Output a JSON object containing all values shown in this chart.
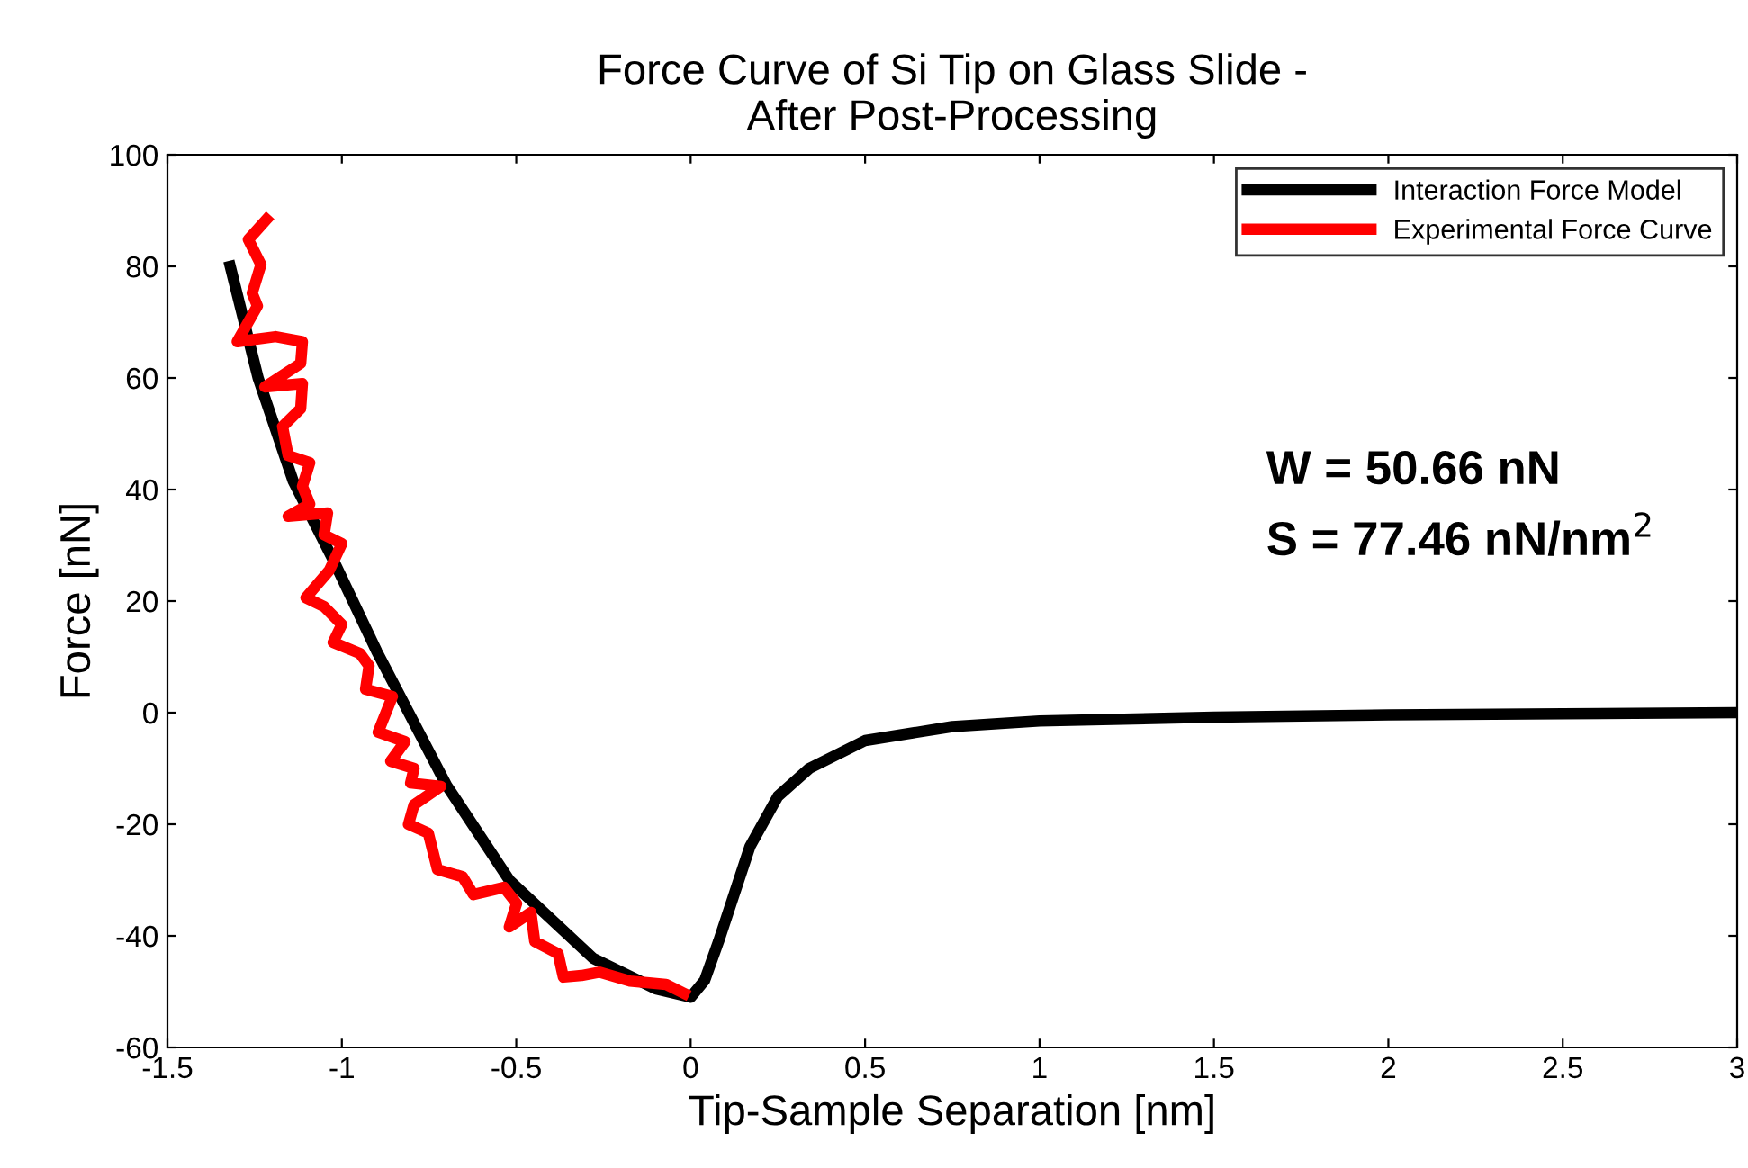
{
  "chart_data": {
    "type": "line",
    "title": "Force Curve of Si Tip on Glass Slide -\nAfter Post-Processing",
    "xlabel": "Tip-Sample Separation [nm]",
    "ylabel": "Force [nN]",
    "annotations": [
      "W = 50.66 nN",
      "S = 77.46 nN/nm$^{2}$"
    ],
    "xlim": [
      -1.5,
      3
    ],
    "ylim": [
      -60,
      100
    ],
    "xticks": [
      -1.5,
      -1,
      -0.5,
      0,
      0.5,
      1,
      1.5,
      2,
      2.5,
      3
    ],
    "yticks": [
      -60,
      -40,
      -20,
      0,
      20,
      40,
      60,
      80,
      100
    ],
    "grid": false,
    "legend": "top right",
    "marker": "none",
    "line_style": "solid",
    "series": [
      {
        "name": "Interaction Force Model",
        "color": "#000000",
        "x": [
          -1.32,
          -1.24,
          -1.14,
          -1.02,
          -0.9,
          -0.7,
          -0.52,
          -0.28,
          -0.1,
          0,
          0.04,
          0.08,
          0.17,
          0.25,
          0.34,
          0.5,
          0.75,
          1,
          1.5,
          2,
          2.5,
          3
        ],
        "values": [
          80,
          60,
          41.6,
          26.8,
          11,
          -13,
          -30,
          -44,
          -49.5,
          -51,
          -48,
          -41,
          -24,
          -15,
          -10,
          -5,
          -2.5,
          -1.5,
          -0.8,
          -0.4,
          -0.2,
          0
        ]
      },
      {
        "name": "Experimental Force Curve",
        "color": "#ff0000",
        "x": [
          -1.216,
          -1.268,
          -1.232,
          -1.257,
          -1.242,
          -1.3,
          -1.19,
          -1.113,
          -1.118,
          -1.221,
          -1.113,
          -1.118,
          -1.17,
          -1.154,
          -1.092,
          -1.113,
          -1.092,
          -1.154,
          -1.041,
          -1.051,
          -1.0,
          -1.036,
          -1.103,
          -1.051,
          -1.0,
          -1.025,
          -0.948,
          -0.922,
          -0.932,
          -0.855,
          -0.896,
          -0.819,
          -0.86,
          -0.793,
          -0.803,
          -0.716,
          -0.793,
          -0.809,
          -0.752,
          -0.726,
          -0.654,
          -0.623,
          -0.535,
          -0.499,
          -0.52,
          -0.458,
          -0.447,
          -0.38,
          -0.365,
          -0.313,
          -0.262,
          -0.174,
          -0.071,
          -0.019
        ],
        "values": [
          88.4,
          84.8,
          80.3,
          75.2,
          72.9,
          66.5,
          67.4,
          66.5,
          62.6,
          58.4,
          59,
          54.5,
          51.3,
          46.1,
          44.8,
          40.6,
          37.4,
          35.2,
          35.8,
          31.9,
          30.3,
          25.5,
          20.6,
          19,
          15.8,
          12.6,
          10.6,
          8.4,
          4.2,
          2.9,
          -3.5,
          -5.2,
          -8.7,
          -10,
          -12.6,
          -13.2,
          -16.5,
          -20,
          -21.6,
          -28.1,
          -29.4,
          -32.6,
          -31.3,
          -34.2,
          -38.4,
          -35.8,
          -41,
          -43.2,
          -47.4,
          -47.1,
          -46.5,
          -48.1,
          -48.7,
          -50.3
        ]
      }
    ]
  }
}
